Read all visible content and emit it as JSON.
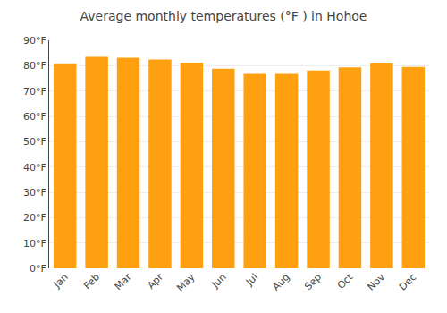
{
  "chart_data": {
    "type": "bar",
    "title": "Average monthly temperatures (°F ) in Hohoe",
    "categories": [
      "Jan",
      "Feb",
      "Mar",
      "Apr",
      "May",
      "Jun",
      "Jul",
      "Aug",
      "Sep",
      "Oct",
      "Nov",
      "Dec"
    ],
    "values": [
      80.6,
      83.5,
      83.1,
      82.4,
      81.1,
      78.8,
      76.8,
      76.8,
      78.1,
      79.3,
      80.8,
      79.5
    ],
    "color": "#FFA010",
    "ylim": [
      0,
      90
    ],
    "yticks": [
      {
        "value": 0,
        "label": "0°F"
      },
      {
        "value": 10,
        "label": "10°F"
      },
      {
        "value": 20,
        "label": "20°F"
      },
      {
        "value": 30,
        "label": "30°F"
      },
      {
        "value": 40,
        "label": "40°F"
      },
      {
        "value": 50,
        "label": "50°F"
      },
      {
        "value": 60,
        "label": "60°F"
      },
      {
        "value": 70,
        "label": "70°F"
      },
      {
        "value": 80,
        "label": "80°F"
      },
      {
        "value": 90,
        "label": "90°F"
      }
    ],
    "grid": true
  }
}
